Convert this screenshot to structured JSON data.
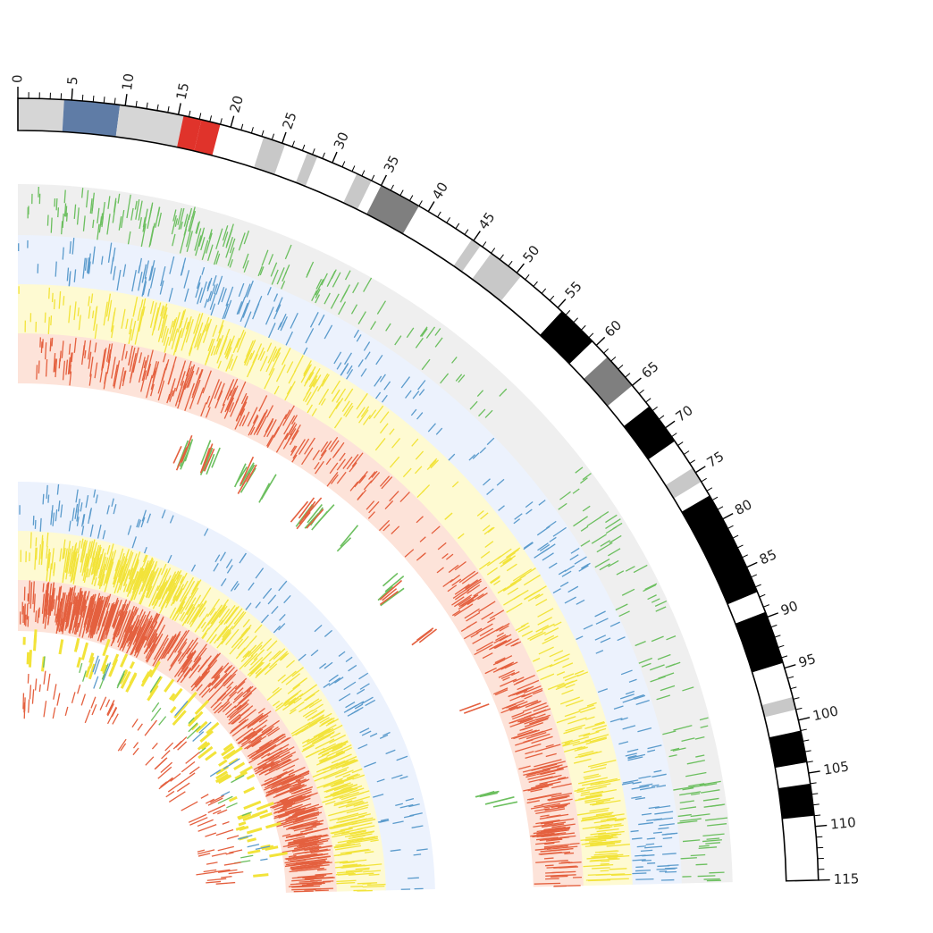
{
  "chart_data": {
    "type": "circos",
    "axis": {
      "min": 0,
      "max": 115,
      "major_tick_step": 5,
      "minor_tick_step": 1,
      "tick_labels": [
        "0",
        "5",
        "10",
        "15",
        "20",
        "25",
        "30",
        "35",
        "40",
        "45",
        "50",
        "55",
        "60",
        "65",
        "70",
        "75",
        "80",
        "85",
        "90",
        "95",
        "100",
        "105",
        "110",
        "115"
      ]
    },
    "ideogram_bands": [
      {
        "start": 0,
        "end": 4.3,
        "color": "#d6d6d6"
      },
      {
        "start": 4.3,
        "end": 9.5,
        "color": "#5f7ca6"
      },
      {
        "start": 9.5,
        "end": 15.5,
        "color": "#d6d6d6"
      },
      {
        "start": 15.5,
        "end": 17.2,
        "color": "#e0332b"
      },
      {
        "start": 17.2,
        "end": 19.0,
        "color": "#e0332b"
      },
      {
        "start": 23.2,
        "end": 25.3,
        "color": "#c8c8c8"
      },
      {
        "start": 27.5,
        "end": 28.5,
        "color": "#c8c8c8"
      },
      {
        "start": 32.5,
        "end": 34.0,
        "color": "#c8c8c8"
      },
      {
        "start": 35.0,
        "end": 39.0,
        "color": "#7f7f7f"
      },
      {
        "start": 44.8,
        "end": 45.8,
        "color": "#c8c8c8"
      },
      {
        "start": 47.0,
        "end": 50.5,
        "color": "#c8c8c8"
      },
      {
        "start": 55.5,
        "end": 59.5,
        "color": "#000000"
      },
      {
        "start": 61.5,
        "end": 65.0,
        "color": "#7f7f7f"
      },
      {
        "start": 67.5,
        "end": 71.5,
        "color": "#000000"
      },
      {
        "start": 74.5,
        "end": 76.0,
        "color": "#c8c8c8"
      },
      {
        "start": 77.5,
        "end": 87.5,
        "color": "#000000"
      },
      {
        "start": 89.5,
        "end": 94.5,
        "color": "#000000"
      },
      {
        "start": 97.8,
        "end": 99.0,
        "color": "#c8c8c8"
      },
      {
        "start": 101.0,
        "end": 104.0,
        "color": "#000000"
      },
      {
        "start": 106.0,
        "end": 109.0,
        "color": "#000000"
      }
    ],
    "track_colors": {
      "green": "#6cbf5f",
      "blue": "#5b9bcc",
      "yellow": "#f2e33a",
      "red": "#e4603f"
    },
    "background_colors": {
      "gray": "#efefef",
      "blue": "#ecf2fd",
      "yellow": "#fefad2",
      "red": "#fde3d9"
    },
    "tracks": [
      {
        "name": "",
        "group": "outer",
        "color": "green",
        "background": "gray",
        "density": [
          0.05,
          0.18,
          0.28,
          0.36,
          0.42,
          0.45,
          0.46,
          0.44,
          0.4,
          0.36,
          0.32,
          0.3,
          0.26,
          0.22,
          0.2,
          0.18,
          0.16,
          0.14,
          0.1,
          0.08,
          0.06,
          0.05,
          0.04,
          0.05,
          0.22,
          0.3,
          0.28,
          0.25,
          0.2,
          0.18,
          0.22,
          0.24,
          0.26,
          0.3,
          0.34,
          0.36,
          0.38,
          0.38,
          0.36,
          0.35
        ]
      },
      {
        "name": "",
        "group": "outer",
        "color": "blue",
        "background": "blue",
        "density": [
          0.05,
          0.2,
          0.3,
          0.38,
          0.42,
          0.44,
          0.42,
          0.4,
          0.38,
          0.36,
          0.34,
          0.32,
          0.28,
          0.26,
          0.22,
          0.2,
          0.18,
          0.16,
          0.12,
          0.1,
          0.08,
          0.06,
          0.05,
          0.05,
          0.2,
          0.3,
          0.26,
          0.2,
          0.18,
          0.16,
          0.18,
          0.22,
          0.24,
          0.26,
          0.28,
          0.3,
          0.32,
          0.34,
          0.32,
          0.3
        ]
      },
      {
        "name": "",
        "group": "outer",
        "color": "yellow",
        "background": "yellow",
        "density": [
          0.06,
          0.22,
          0.34,
          0.42,
          0.5,
          0.55,
          0.6,
          0.62,
          0.6,
          0.58,
          0.54,
          0.5,
          0.46,
          0.42,
          0.38,
          0.34,
          0.28,
          0.24,
          0.2,
          0.16,
          0.12,
          0.1,
          0.08,
          0.1,
          0.3,
          0.4,
          0.36,
          0.3,
          0.28,
          0.3,
          0.36,
          0.42,
          0.48,
          0.54,
          0.58,
          0.62,
          0.66,
          0.68,
          0.66,
          0.64
        ]
      },
      {
        "name": "",
        "group": "outer",
        "color": "red",
        "background": "red",
        "density": [
          0.06,
          0.24,
          0.36,
          0.46,
          0.54,
          0.6,
          0.64,
          0.66,
          0.66,
          0.64,
          0.6,
          0.56,
          0.5,
          0.46,
          0.42,
          0.38,
          0.32,
          0.28,
          0.24,
          0.2,
          0.16,
          0.12,
          0.1,
          0.12,
          0.34,
          0.42,
          0.4,
          0.36,
          0.36,
          0.4,
          0.46,
          0.52,
          0.56,
          0.6,
          0.64,
          0.68,
          0.7,
          0.72,
          0.7,
          0.68
        ]
      },
      {
        "name": "",
        "group": "inner",
        "color": "blue",
        "background": "blue",
        "density": [
          0.04,
          0.12,
          0.2,
          0.24,
          0.22,
          0.18,
          0.16,
          0.14,
          0.12,
          0.1,
          0.08,
          0.06,
          0.06,
          0.08,
          0.1,
          0.12,
          0.14,
          0.16,
          0.14,
          0.12,
          0.1,
          0.1,
          0.12,
          0.14,
          0.16,
          0.18,
          0.16,
          0.14,
          0.12,
          0.12,
          0.14,
          0.16,
          0.18,
          0.18,
          0.16,
          0.14,
          0.12,
          0.12,
          0.1,
          0.1
        ]
      },
      {
        "name": "",
        "group": "inner",
        "color": "yellow",
        "background": "yellow",
        "density": [
          0.08,
          0.34,
          0.5,
          0.6,
          0.66,
          0.7,
          0.72,
          0.74,
          0.74,
          0.72,
          0.7,
          0.66,
          0.62,
          0.58,
          0.54,
          0.5,
          0.46,
          0.42,
          0.38,
          0.36,
          0.34,
          0.32,
          0.32,
          0.34,
          0.36,
          0.4,
          0.44,
          0.48,
          0.5,
          0.52,
          0.54,
          0.56,
          0.58,
          0.6,
          0.6,
          0.58,
          0.56,
          0.55,
          0.54,
          0.52
        ]
      },
      {
        "name": "",
        "group": "inner",
        "color": "red",
        "background": "red",
        "density": [
          0.1,
          0.5,
          0.7,
          0.8,
          0.86,
          0.9,
          0.9,
          0.88,
          0.86,
          0.82,
          0.78,
          0.74,
          0.7,
          0.66,
          0.62,
          0.58,
          0.54,
          0.5,
          0.48,
          0.46,
          0.44,
          0.44,
          0.46,
          0.48,
          0.5,
          0.54,
          0.58,
          0.62,
          0.64,
          0.66,
          0.68,
          0.7,
          0.72,
          0.72,
          0.7,
          0.68,
          0.66,
          0.65,
          0.64,
          0.62
        ]
      }
    ],
    "floating_clusters": [
      {
        "color": "green",
        "start": 26.0,
        "end": 27.5,
        "count": 4
      },
      {
        "color": "red",
        "start": 25.5,
        "end": 27.0,
        "count": 3
      },
      {
        "color": "green",
        "start": 29.5,
        "end": 31.5,
        "count": 5
      },
      {
        "color": "red",
        "start": 30.0,
        "end": 31.0,
        "count": 3
      },
      {
        "color": "green",
        "start": 36.0,
        "end": 38.0,
        "count": 6
      },
      {
        "color": "red",
        "start": 36.5,
        "end": 37.5,
        "count": 3
      },
      {
        "color": "green",
        "start": 40.0,
        "end": 41.0,
        "count": 2
      },
      {
        "color": "green",
        "start": 46.0,
        "end": 50.0,
        "count": 8
      },
      {
        "color": "red",
        "start": 46.5,
        "end": 49.5,
        "count": 6
      },
      {
        "color": "green",
        "start": 55.0,
        "end": 56.0,
        "count": 2
      },
      {
        "color": "green",
        "start": 64.0,
        "end": 66.5,
        "count": 4
      },
      {
        "color": "red",
        "start": 64.0,
        "end": 66.5,
        "count": 3
      },
      {
        "color": "red",
        "start": 73.0,
        "end": 75.0,
        "count": 3
      },
      {
        "color": "red",
        "start": 86.5,
        "end": 87.5,
        "count": 2
      },
      {
        "color": "green",
        "start": 100.0,
        "end": 103.5,
        "count": 6
      }
    ],
    "innermost_ticks": [
      {
        "color": "yellow",
        "start": 1.0,
        "end": 112.0,
        "count": 90
      },
      {
        "color": "green",
        "start": 4.0,
        "end": 112.0,
        "count": 22
      },
      {
        "color": "blue",
        "start": 5.0,
        "end": 110.0,
        "count": 14
      },
      {
        "color": "red",
        "start": 1.0,
        "end": 112.0,
        "count": 95
      }
    ]
  }
}
